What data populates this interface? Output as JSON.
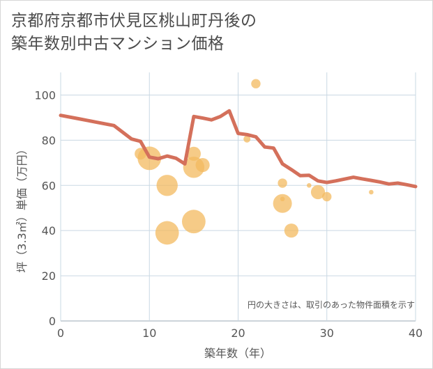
{
  "header": {
    "title_line1": "京都府京都市伏見区桃山町丹後の",
    "title_line2": "築年数別中古マンション価格"
  },
  "colors": {
    "line": "#d4705b",
    "bubble": "#f3b95f",
    "grid": "#c9d8e3",
    "text": "#555555"
  },
  "chart_data": {
    "type": "scatter",
    "title": "京都府京都市伏見区桃山町丹後の築年数別中古マンション価格",
    "xlabel": "築年数（年）",
    "ylabel": "坪（3.3㎡）単価（万円）",
    "xlim": [
      0,
      40
    ],
    "ylim": [
      0,
      110
    ],
    "x_ticks": [
      0,
      10,
      20,
      30,
      40
    ],
    "y_ticks": [
      0,
      20,
      40,
      60,
      80,
      100
    ],
    "x_tick_labels": [
      "0",
      "10",
      "20",
      "30",
      "40"
    ],
    "y_tick_labels": [
      "0",
      "20",
      "40",
      "60",
      "80",
      "100"
    ],
    "grid": true,
    "note": "円の大きさは、取引のあった物件面積を示す",
    "series": [
      {
        "name": "取引事例",
        "kind": "bubble",
        "points": [
          {
            "x": 9,
            "y": 74,
            "size": 4
          },
          {
            "x": 10,
            "y": 72,
            "size": 9
          },
          {
            "x": 12,
            "y": 60,
            "size": 8
          },
          {
            "x": 12,
            "y": 39,
            "size": 9
          },
          {
            "x": 15,
            "y": 74,
            "size": 5
          },
          {
            "x": 15,
            "y": 68,
            "size": 8
          },
          {
            "x": 16,
            "y": 69,
            "size": 5
          },
          {
            "x": 15,
            "y": 44,
            "size": 9
          },
          {
            "x": 21,
            "y": 80.5,
            "size": 2
          },
          {
            "x": 22,
            "y": 105,
            "size": 3
          },
          {
            "x": 25,
            "y": 61,
            "size": 3
          },
          {
            "x": 25,
            "y": 54,
            "size": 1
          },
          {
            "x": 25,
            "y": 52,
            "size": 7
          },
          {
            "x": 26,
            "y": 40,
            "size": 5
          },
          {
            "x": 28,
            "y": 60,
            "size": 1
          },
          {
            "x": 29,
            "y": 57,
            "size": 5
          },
          {
            "x": 30,
            "y": 55,
            "size": 3
          },
          {
            "x": 35,
            "y": 57,
            "size": 1
          }
        ]
      },
      {
        "name": "平均単価",
        "kind": "line",
        "x": [
          0,
          2,
          4,
          6,
          8,
          9,
          10,
          11,
          12,
          13,
          14,
          15,
          16,
          17,
          18,
          19,
          20,
          21,
          22,
          23,
          24,
          25,
          26,
          27,
          28,
          29,
          30,
          31,
          32,
          33,
          34,
          35,
          36,
          37,
          38,
          39,
          40
        ],
        "y": [
          91,
          89.5,
          88,
          86.5,
          80.5,
          79.5,
          72.5,
          71.8,
          73,
          72,
          69.5,
          90.5,
          89.8,
          89,
          90.5,
          93,
          83,
          82.5,
          81.5,
          77,
          76.5,
          69.5,
          67,
          64.3,
          64.5,
          62,
          61.3,
          62,
          62.8,
          63.6,
          62.9,
          62.2,
          61.5,
          60.6,
          61,
          60.3,
          59.5
        ]
      }
    ]
  }
}
